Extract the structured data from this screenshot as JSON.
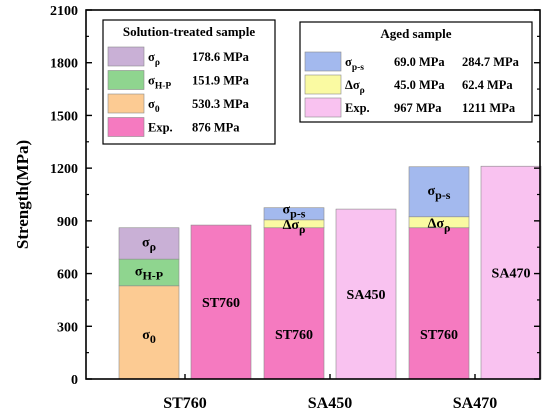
{
  "chart_data": {
    "type": "bar",
    "subtype": "stacked",
    "ylabel": "Strength(MPa)",
    "xlabel": "",
    "ylim": [
      0,
      2100
    ],
    "yticks": [
      0,
      300,
      600,
      900,
      1200,
      1500,
      1800,
      2100
    ],
    "categories": [
      "ST760",
      "SA450",
      "SA470"
    ],
    "colors": {
      "sigma_0": "#FCCB93",
      "sigma_HP": "#8FD58F",
      "sigma_rho": "#C9B0D6",
      "exp": "#F57AC0",
      "sigma_ps": "#A3B9EE",
      "delta_sigma_rho": "#FAFAA2",
      "exp_aged": "#F9C2F0"
    },
    "bars": [
      {
        "group": "ST760",
        "slot": "left",
        "segments": [
          {
            "key": "sigma_0",
            "value": 530.3,
            "label_main": "σ",
            "label_sub": "0"
          },
          {
            "key": "sigma_HP",
            "value": 151.9,
            "label_main": "σ",
            "label_sub": "H-P"
          },
          {
            "key": "sigma_rho",
            "value": 178.6,
            "label_main": "σ",
            "label_sub": "ρ"
          }
        ]
      },
      {
        "group": "ST760",
        "slot": "right",
        "segments": [
          {
            "key": "exp",
            "value": 876,
            "label_main": "ST760",
            "label_sub": ""
          }
        ]
      },
      {
        "group": "SA450",
        "slot": "left",
        "segments": [
          {
            "key": "exp",
            "value": 860.8,
            "label_main": "ST760",
            "label_sub": ""
          },
          {
            "key": "delta_sigma_rho",
            "value": 45.0,
            "label_main": "Δσ",
            "label_sub": "ρ"
          },
          {
            "key": "sigma_ps",
            "value": 69.0,
            "label_main": "σ",
            "label_sub": "p-s"
          }
        ]
      },
      {
        "group": "SA450",
        "slot": "right",
        "segments": [
          {
            "key": "exp_aged",
            "value": 967,
            "label_main": "SA450",
            "label_sub": ""
          }
        ]
      },
      {
        "group": "SA470",
        "slot": "left",
        "segments": [
          {
            "key": "exp",
            "value": 860.8,
            "label_main": "ST760",
            "label_sub": ""
          },
          {
            "key": "delta_sigma_rho",
            "value": 62.4,
            "label_main": "Δσ",
            "label_sub": "ρ"
          },
          {
            "key": "sigma_ps",
            "value": 284.7,
            "label_main": "σ",
            "label_sub": "p-s"
          }
        ]
      },
      {
        "group": "SA470",
        "slot": "right",
        "segments": [
          {
            "key": "exp_aged",
            "value": 1211,
            "label_main": "SA470",
            "label_sub": ""
          }
        ]
      }
    ],
    "legends": [
      {
        "title": "Solution-treated sample",
        "position": "top-left",
        "entries": [
          {
            "key": "sigma_rho",
            "label_main": "σ",
            "label_sub": "ρ",
            "values": [
              "178.6 MPa"
            ]
          },
          {
            "key": "sigma_HP",
            "label_main": "σ",
            "label_sub": "H-P",
            "values": [
              "151.9 MPa"
            ]
          },
          {
            "key": "sigma_0",
            "label_main": "σ",
            "label_sub": "0",
            "values": [
              "530.3 MPa"
            ]
          },
          {
            "key": "exp",
            "label_main": "Exp.",
            "label_sub": "",
            "values": [
              "876 MPa"
            ]
          }
        ]
      },
      {
        "title": "Aged sample",
        "position": "top-right",
        "entries": [
          {
            "key": "sigma_ps",
            "label_main": "σ",
            "label_sub": "p-s",
            "values": [
              "69.0 MPa",
              "284.7 MPa"
            ]
          },
          {
            "key": "delta_sigma_rho",
            "label_main": "Δσ",
            "label_sub": "ρ",
            "values": [
              "45.0 MPa",
              "62.4 MPa"
            ]
          },
          {
            "key": "exp_aged",
            "label_main": "Exp.",
            "label_sub": "",
            "values": [
              "967 MPa",
              "1211 MPa"
            ]
          }
        ]
      }
    ]
  }
}
